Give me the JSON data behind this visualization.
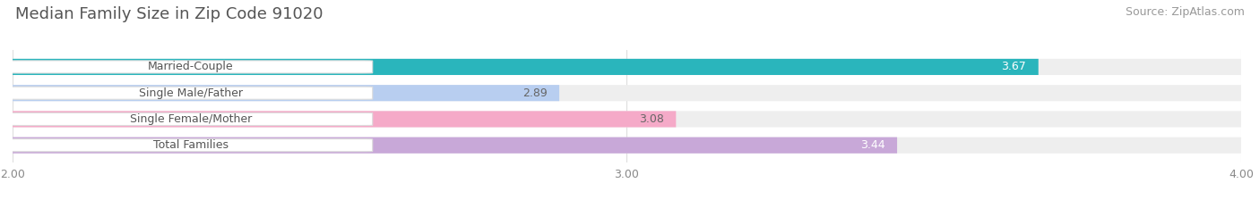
{
  "title": "Median Family Size in Zip Code 91020",
  "source": "Source: ZipAtlas.com",
  "categories": [
    "Married-Couple",
    "Single Male/Father",
    "Single Female/Mother",
    "Total Families"
  ],
  "values": [
    3.67,
    2.89,
    3.08,
    3.44
  ],
  "bar_colors": [
    "#2ab5bc",
    "#b8cef0",
    "#f5aac8",
    "#c8a8d8"
  ],
  "value_colors": [
    "#ffffff",
    "#666666",
    "#666666",
    "#ffffff"
  ],
  "xmin": 2.0,
  "xmax": 4.0,
  "xticks": [
    2.0,
    3.0,
    4.0
  ],
  "xtick_labels": [
    "2.00",
    "3.00",
    "4.00"
  ],
  "bar_height": 0.62,
  "bar_gap": 0.38,
  "title_color": "#555555",
  "source_color": "#999999",
  "background_color": "#ffffff",
  "bar_background_color": "#eeeeee",
  "label_box_color": "#ffffff",
  "label_text_color": "#555555",
  "grid_color": "#dddddd",
  "title_fontsize": 13,
  "source_fontsize": 9,
  "label_fontsize": 9,
  "value_fontsize": 9
}
